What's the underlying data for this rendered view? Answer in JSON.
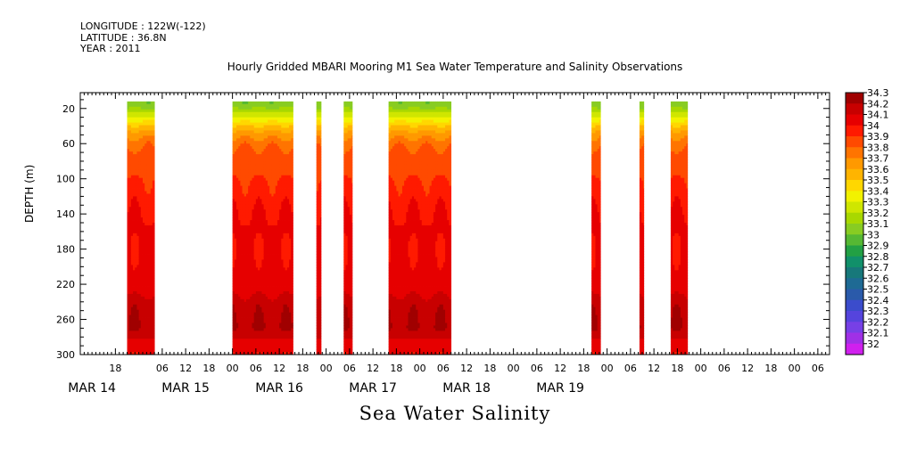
{
  "header": {
    "longitude": "LONGITUDE : 122W(-122)",
    "latitude": "LATITUDE : 36.8N",
    "year": "YEAR : 2011"
  },
  "chart_data": {
    "type": "heatmap",
    "title": "Hourly Gridded MBARI Mooring M1 Sea Water Temperature and Salinity Observations",
    "xlabel": "Sea Water Salinity",
    "ylabel": "DEPTH (m)",
    "x_axis": {
      "unit": "hours since MAR 14 00:00",
      "range": [
        9,
        201
      ],
      "hour_ticks": [
        {
          "x": 18,
          "label": "18"
        },
        {
          "x": 30,
          "label": "06"
        },
        {
          "x": 36,
          "label": "12"
        },
        {
          "x": 42,
          "label": "18"
        },
        {
          "x": 48,
          "label": "00"
        },
        {
          "x": 54,
          "label": "06"
        },
        {
          "x": 60,
          "label": "12"
        },
        {
          "x": 66,
          "label": "18"
        },
        {
          "x": 72,
          "label": "00"
        },
        {
          "x": 78,
          "label": "06"
        },
        {
          "x": 84,
          "label": "12"
        },
        {
          "x": 90,
          "label": "18"
        },
        {
          "x": 96,
          "label": "00"
        },
        {
          "x": 102,
          "label": "06"
        },
        {
          "x": 108,
          "label": "12"
        },
        {
          "x": 114,
          "label": "18"
        },
        {
          "x": 120,
          "label": "00"
        },
        {
          "x": 126,
          "label": "06"
        },
        {
          "x": 132,
          "label": "12"
        },
        {
          "x": 138,
          "label": "18"
        },
        {
          "x": 144,
          "label": "00"
        },
        {
          "x": 150,
          "label": "06"
        },
        {
          "x": 156,
          "label": "12"
        },
        {
          "x": 162,
          "label": "18"
        },
        {
          "x": 168,
          "label": "00"
        },
        {
          "x": 174,
          "label": "06"
        },
        {
          "x": 180,
          "label": "12"
        },
        {
          "x": 186,
          "label": "18"
        },
        {
          "x": 192,
          "label": "00"
        },
        {
          "x": 198,
          "label": "06"
        }
      ],
      "date_labels": [
        {
          "x": 12,
          "label": "MAR 14"
        },
        {
          "x": 36,
          "label": "MAR 15"
        },
        {
          "x": 60,
          "label": "MAR 16"
        },
        {
          "x": 84,
          "label": "MAR 17"
        },
        {
          "x": 108,
          "label": "MAR 18"
        },
        {
          "x": 132,
          "label": "MAR 19"
        }
      ]
    },
    "y_axis": {
      "range": [
        300,
        2
      ],
      "ticks": [
        20,
        60,
        100,
        140,
        180,
        220,
        260,
        300
      ]
    },
    "data_segments": [
      {
        "start": 21,
        "end": 28
      },
      {
        "start": 48,
        "end": 63.5
      },
      {
        "start": 69.5,
        "end": 70.7
      },
      {
        "start": 76.5,
        "end": 78.7
      },
      {
        "start": 88,
        "end": 104
      },
      {
        "start": 140,
        "end": 142.3
      },
      {
        "start": 152.3,
        "end": 153.4
      },
      {
        "start": 160.3,
        "end": 164.6
      }
    ],
    "depth_profile": [
      {
        "depth": 20,
        "salinity": 33.2
      },
      {
        "depth": 32,
        "salinity": 33.45
      },
      {
        "depth": 45,
        "salinity": 33.7
      },
      {
        "depth": 58,
        "salinity": 33.85
      },
      {
        "depth": 72,
        "salinity": 33.95
      },
      {
        "depth": 100,
        "salinity": 34.0
      },
      {
        "depth": 140,
        "salinity": 34.1
      },
      {
        "depth": 225,
        "salinity": 34.15
      },
      {
        "depth": 240,
        "salinity": 34.25
      },
      {
        "depth": 270,
        "salinity": 34.3
      },
      {
        "depth": 285,
        "salinity": 34.18
      },
      {
        "depth": 300,
        "salinity": 34.12
      }
    ],
    "colorbar": {
      "levels": [
        "34.3",
        "34.2",
        "34.1",
        "34",
        "33.9",
        "33.8",
        "33.7",
        "33.6",
        "33.5",
        "33.4",
        "33.3",
        "33.2",
        "33.1",
        "33",
        "32.9",
        "32.8",
        "32.7",
        "32.6",
        "32.5",
        "32.4",
        "32.3",
        "32.2",
        "32.1",
        "32"
      ],
      "colors": [
        "#a00000",
        "#c80000",
        "#e60000",
        "#ff1a00",
        "#ff4a00",
        "#ff7400",
        "#ff9900",
        "#ffb400",
        "#ffd700",
        "#f2f200",
        "#cfe600",
        "#a8d800",
        "#88cc22",
        "#55b833",
        "#22a044",
        "#11906a",
        "#17787a",
        "#1e6a94",
        "#2a5aaa",
        "#3b4ccc",
        "#5544dd",
        "#7740e6",
        "#a030e6",
        "#d020ee"
      ]
    }
  }
}
